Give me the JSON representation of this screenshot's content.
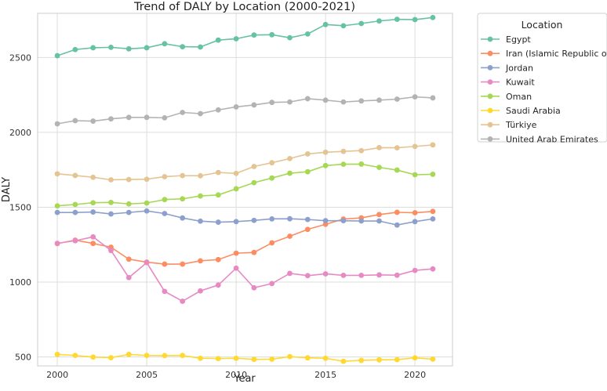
{
  "chart_data": {
    "type": "line",
    "title": "Trend of DALY by Location (2000-2021)",
    "xlabel": "Year",
    "ylabel": "DALY",
    "xlim": [
      1998.9,
      2022.1
    ],
    "ylim": [
      440,
      2795
    ],
    "xticks": [
      2000,
      2005,
      2010,
      2015,
      2020
    ],
    "yticks": [
      500,
      1000,
      1500,
      2000,
      2500
    ],
    "grid": true,
    "legend": {
      "title": "Location",
      "placement": "outside-top-right"
    },
    "x": [
      2000,
      2001,
      2002,
      2003,
      2004,
      2005,
      2006,
      2007,
      2008,
      2009,
      2010,
      2011,
      2012,
      2013,
      2014,
      2015,
      2016,
      2017,
      2018,
      2019,
      2020,
      2021
    ],
    "series": [
      {
        "name": "Egypt",
        "color": "#66c2a5",
        "values": [
          2512,
          2553,
          2565,
          2568,
          2558,
          2565,
          2592,
          2572,
          2570,
          2616,
          2625,
          2650,
          2652,
          2632,
          2657,
          2720,
          2712,
          2727,
          2744,
          2755,
          2753,
          2767
        ]
      },
      {
        "name": "Iran (Islamic Republic of)",
        "color": "#fc8d62",
        "values": [
          1257,
          1280,
          1258,
          1233,
          1153,
          1133,
          1120,
          1120,
          1142,
          1150,
          1193,
          1198,
          1262,
          1306,
          1352,
          1386,
          1421,
          1429,
          1451,
          1466,
          1463,
          1472
        ]
      },
      {
        "name": "Jordan",
        "color": "#8da0cb",
        "values": [
          1465,
          1465,
          1468,
          1455,
          1465,
          1475,
          1458,
          1428,
          1407,
          1400,
          1404,
          1412,
          1422,
          1423,
          1418,
          1410,
          1410,
          1408,
          1408,
          1381,
          1404,
          1422
        ]
      },
      {
        "name": "Kuwait",
        "color": "#e78ac3",
        "values": [
          1259,
          1276,
          1302,
          1211,
          1030,
          1130,
          938,
          872,
          941,
          980,
          1093,
          962,
          990,
          1058,
          1043,
          1055,
          1045,
          1045,
          1048,
          1046,
          1078,
          1088
        ]
      },
      {
        "name": "Oman",
        "color": "#a6d854",
        "values": [
          1509,
          1518,
          1530,
          1532,
          1522,
          1528,
          1551,
          1556,
          1575,
          1582,
          1623,
          1664,
          1695,
          1727,
          1737,
          1778,
          1787,
          1788,
          1766,
          1748,
          1717,
          1720
        ]
      },
      {
        "name": "Saudi Arabia",
        "color": "#ffd92f",
        "values": [
          517,
          510,
          499,
          495,
          517,
          510,
          509,
          510,
          491,
          489,
          491,
          484,
          485,
          502,
          494,
          491,
          471,
          477,
          481,
          482,
          494,
          485
        ]
      },
      {
        "name": "Türkiye",
        "color": "#e5c494",
        "values": [
          1723,
          1712,
          1700,
          1683,
          1685,
          1687,
          1704,
          1711,
          1710,
          1732,
          1726,
          1772,
          1797,
          1825,
          1856,
          1867,
          1873,
          1878,
          1898,
          1897,
          1906,
          1916
        ]
      },
      {
        "name": "United Arab Emirates",
        "color": "#b3b3b3",
        "values": [
          2057,
          2078,
          2075,
          2090,
          2100,
          2100,
          2097,
          2133,
          2125,
          2150,
          2170,
          2183,
          2200,
          2203,
          2225,
          2215,
          2203,
          2210,
          2215,
          2222,
          2237,
          2230
        ]
      }
    ]
  }
}
